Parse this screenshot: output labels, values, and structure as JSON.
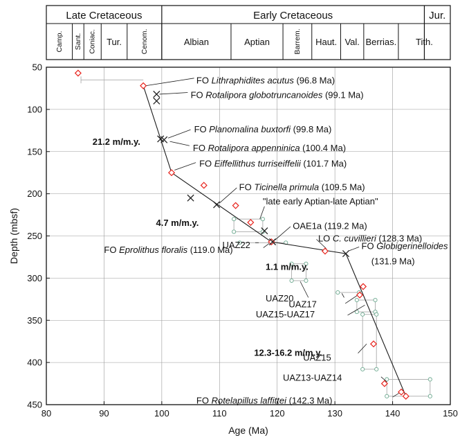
{
  "chart_data": {
    "type": "scatter",
    "xlabel": "Age (Ma)",
    "ylabel": "Depth (mbsf)",
    "xlim": [
      80,
      150
    ],
    "ylim": [
      50,
      450
    ],
    "y_inverted": true,
    "grid": true,
    "x_ticks": [
      80,
      90,
      100,
      110,
      120,
      130,
      140,
      150
    ],
    "y_ticks": [
      50,
      100,
      150,
      200,
      250,
      300,
      350,
      400,
      450
    ],
    "periods": [
      {
        "label": "Late Cretaceous",
        "from": 80,
        "to": 100
      },
      {
        "label": "Early Cretaceous",
        "from": 100,
        "to": 145.5
      },
      {
        "label": "Jur.",
        "from": 145.5,
        "to": 150
      }
    ],
    "stages": [
      {
        "label": "Camp.",
        "from": 80,
        "to": 84.5,
        "vertical": true
      },
      {
        "label": "Sant.",
        "from": 84.5,
        "to": 86.5,
        "vertical": true
      },
      {
        "label": "Coniac.",
        "from": 86.5,
        "to": 89.5,
        "vertical": true
      },
      {
        "label": "Tur.",
        "from": 89.5,
        "to": 94,
        "vertical": false
      },
      {
        "label": "Cenom.",
        "from": 94,
        "to": 100,
        "vertical": true
      },
      {
        "label": "Albian",
        "from": 100,
        "to": 112,
        "vertical": false
      },
      {
        "label": "Aptian",
        "from": 112,
        "to": 121,
        "vertical": false
      },
      {
        "label": "Barrem.",
        "from": 121,
        "to": 126,
        "vertical": true
      },
      {
        "label": "Haut.",
        "from": 126,
        "to": 131,
        "vertical": false
      },
      {
        "label": "Val.",
        "from": 131,
        "to": 135,
        "vertical": false
      },
      {
        "label": "Berrias.",
        "from": 135,
        "to": 141,
        "vertical": false
      },
      {
        "label": "Tith.",
        "from": 141,
        "to": 150,
        "vertical": false
      }
    ],
    "series": [
      {
        "name": "nannofossil datums",
        "marker": "diamond",
        "color": "#e8231c",
        "points": [
          [
            85.5,
            57
          ],
          [
            96.8,
            72
          ],
          [
            101.7,
            175
          ],
          [
            107.3,
            190
          ],
          [
            112.8,
            214
          ],
          [
            115.4,
            234
          ],
          [
            119.0,
            257
          ],
          [
            128.3,
            268
          ],
          [
            134.9,
            310
          ],
          [
            134.3,
            320
          ],
          [
            136.7,
            378
          ],
          [
            138.6,
            425
          ],
          [
            141.5,
            435
          ],
          [
            142.3,
            440
          ]
        ]
      },
      {
        "name": "foraminifer datums",
        "marker": "x",
        "color": "#222222",
        "points": [
          [
            99.1,
            82
          ],
          [
            99.1,
            90
          ],
          [
            99.8,
            135
          ],
          [
            100.4,
            136
          ],
          [
            105.0,
            205
          ],
          [
            109.5,
            213
          ],
          [
            117.8,
            244
          ],
          [
            119.2,
            257
          ],
          [
            131.9,
            271
          ]
        ]
      },
      {
        "name": "age-depth line",
        "marker": "line",
        "color": "#222222",
        "points": [
          [
            96.8,
            72
          ],
          [
            101.7,
            175
          ],
          [
            119.0,
            257
          ],
          [
            131.9,
            271
          ],
          [
            142.3,
            440
          ]
        ]
      }
    ],
    "ranges": [
      {
        "label": "",
        "kind": "bar",
        "x": [
          86.0,
          96.8
        ],
        "y": 65
      },
      {
        "label": "\"late early Aptian-late Aptian\"",
        "kind": "box",
        "x": [
          112.5,
          117.5
        ],
        "y": [
          230,
          245
        ]
      },
      {
        "label": "UAZ22",
        "kind": "bar",
        "x": [
          113.5,
          121.5
        ],
        "y": 258
      },
      {
        "label": "UAZ20",
        "kind": "box",
        "x": [
          122.5,
          125.0
        ],
        "y": [
          283,
          303
        ]
      },
      {
        "label": "UAZ17",
        "kind": "bar",
        "x": [
          130.5,
          134.2
        ],
        "y": 317
      },
      {
        "label": "UAZ15-UAZ17",
        "kind": "box",
        "x": [
          133.8,
          137.0
        ],
        "y": [
          326,
          340
        ]
      },
      {
        "label": "UAZ15",
        "kind": "box",
        "x": [
          134.8,
          137.2
        ],
        "y": [
          343,
          408
        ]
      },
      {
        "label": "UAZ13-UAZ14",
        "kind": "box",
        "x": [
          139.0,
          146.5
        ],
        "y": [
          420,
          440
        ]
      }
    ],
    "annotations": [
      {
        "parts": [
          {
            "t": "FO "
          },
          {
            "t": "Lithraphidites acutus",
            "i": true
          },
          {
            "t": " (96.8 Ma)"
          }
        ]
      },
      {
        "parts": [
          {
            "t": "FO "
          },
          {
            "t": "Rotalipora globotruncanoides",
            "i": true
          },
          {
            "t": " (99.1 Ma)"
          }
        ]
      },
      {
        "parts": [
          {
            "t": "FO "
          },
          {
            "t": "Planomalina buxtorfi",
            "i": true
          },
          {
            "t": " (99.8 Ma)"
          }
        ]
      },
      {
        "parts": [
          {
            "t": "FO "
          },
          {
            "t": "Rotalipora appenninica",
            "i": true
          },
          {
            "t": " (100.4 Ma)"
          }
        ]
      },
      {
        "parts": [
          {
            "t": "FO "
          },
          {
            "t": "Eiffellithus turriseiffelii",
            "i": true
          },
          {
            "t": " (101.7 Ma)"
          }
        ]
      },
      {
        "parts": [
          {
            "t": "FO "
          },
          {
            "t": "Ticinella primula",
            "i": true
          },
          {
            "t": " (109.5 Ma)"
          }
        ]
      },
      {
        "parts": [
          {
            "t": "\"late early Aptian-late Aptian\""
          }
        ]
      },
      {
        "parts": [
          {
            "t": "OAE1a (119.2 Ma)"
          }
        ]
      },
      {
        "parts": [
          {
            "t": "LO "
          },
          {
            "t": "C. cuvillieri",
            "i": true
          },
          {
            "t": " (128.3 Ma)"
          }
        ]
      },
      {
        "parts": [
          {
            "t": "FO "
          },
          {
            "t": "Globigerinelloides",
            "i": true
          }
        ]
      },
      {
        "parts": [
          {
            "t": "(131.9 Ma)"
          }
        ]
      },
      {
        "parts": [
          {
            "t": "UAZ22"
          }
        ]
      },
      {
        "parts": [
          {
            "t": "FO "
          },
          {
            "t": "Eprolithus floralis",
            "i": true
          },
          {
            "t": " (119.0 Ma)"
          }
        ]
      },
      {
        "parts": [
          {
            "t": "UAZ20"
          }
        ]
      },
      {
        "parts": [
          {
            "t": "UAZ17"
          }
        ]
      },
      {
        "parts": [
          {
            "t": "UAZ15-UAZ17"
          }
        ]
      },
      {
        "parts": [
          {
            "t": "UAZ15"
          }
        ]
      },
      {
        "parts": [
          {
            "t": "UAZ13-UAZ14"
          }
        ]
      },
      {
        "parts": [
          {
            "t": "FO "
          },
          {
            "t": "Rotelapillus laffittei",
            "i": true
          },
          {
            "t": " (142.3 Ma)"
          }
        ]
      }
    ],
    "rates": [
      "21.2 m/m.y.",
      "4.7 m/m.y.",
      "1.1 m/m.y.",
      "12.3-16.2 m/m.y."
    ]
  }
}
